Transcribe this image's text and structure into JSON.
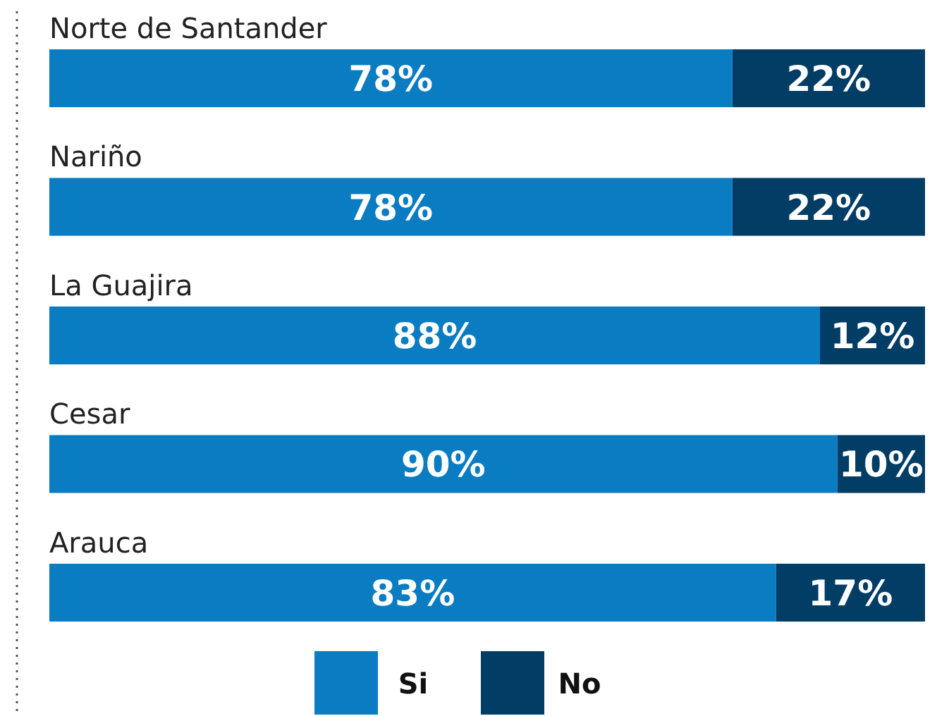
{
  "chart_data": {
    "type": "bar",
    "orientation": "horizontal",
    "stacked": true,
    "legend": "bottom",
    "categories": [
      "Norte de Santander",
      "Nariño",
      "La Guajira",
      "Cesar",
      "Arauca"
    ],
    "series": [
      {
        "name": "Si",
        "color": "#0a7cc2",
        "values": [
          78,
          78,
          88,
          90,
          83
        ],
        "value_labels": [
          "78%",
          "78%",
          "88%",
          "90%",
          "83%"
        ]
      },
      {
        "name": "No",
        "color": "#023d66",
        "values": [
          22,
          22,
          12,
          10,
          17
        ],
        "value_labels": [
          "22%",
          "22%",
          "12%",
          "10%",
          "17%"
        ]
      }
    ]
  }
}
